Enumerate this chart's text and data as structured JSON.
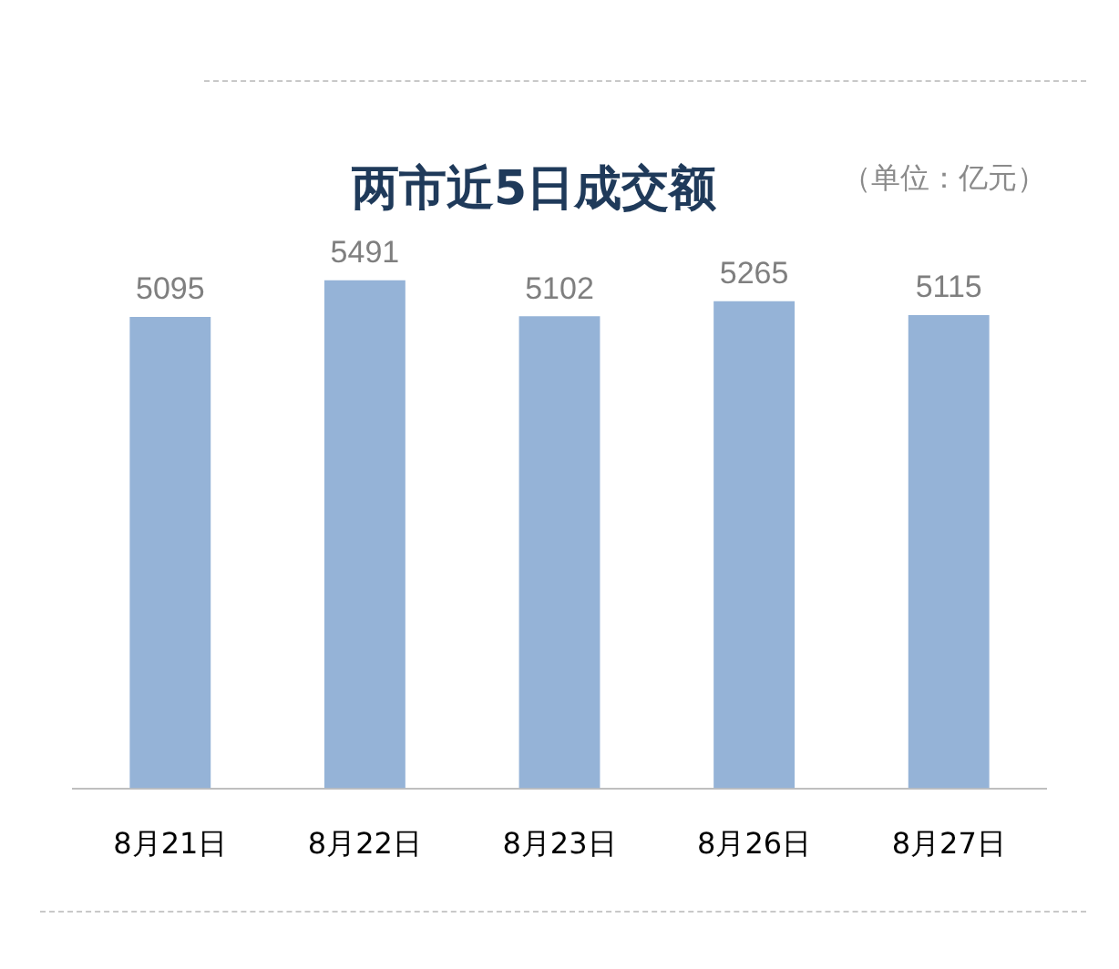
{
  "chart_data": {
    "type": "bar",
    "title": "两市近5日成交额",
    "annotations": [
      "（单位：亿元）"
    ],
    "categories": [
      "8月21日",
      "8月22日",
      "8月23日",
      "8月26日",
      "8月27日"
    ],
    "values": [
      5095,
      5491,
      5102,
      5265,
      5115
    ],
    "color": "#95b3d7",
    "data_labels": true,
    "grid": false,
    "legend": false
  }
}
